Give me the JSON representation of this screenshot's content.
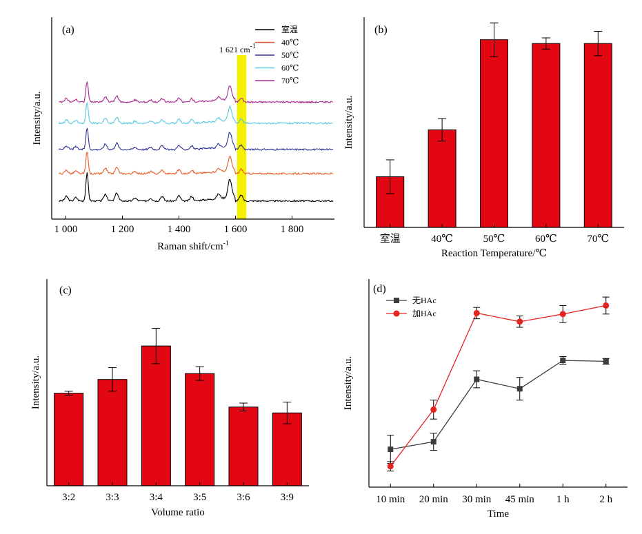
{
  "colors": {
    "bar_red": "#e30613",
    "highlight_yellow": "#f5ef00",
    "black": "#000000",
    "orange": "#ea5a26",
    "navy": "#2d3192",
    "cyan": "#5bc8e0",
    "magenta": "#a8288c",
    "gray_series": "#3c3c3c",
    "red_series": "#e52421"
  },
  "chart_data": [
    {
      "panel": "(a)",
      "type": "line",
      "xlabel": "Raman shift/cm",
      "xlabel_sup": "-1",
      "ylabel": "Intensity/a.u.",
      "xlim": [
        950,
        1950
      ],
      "x_ticks": [
        1000,
        1200,
        1400,
        1600,
        1800
      ],
      "x_tick_labels": [
        "1 000",
        "1 200",
        "1 400",
        "1 600",
        "1 800"
      ],
      "ylim": [
        0,
        1
      ],
      "grid": false,
      "legend_position": "top-right",
      "annotation": {
        "text": "1 621 cm",
        "sup": "-1",
        "band_x": [
          1605,
          1638
        ]
      },
      "series_peaks": [
        [
          1002,
          0.02
        ],
        [
          1035,
          0.015
        ],
        [
          1075,
          0.12
        ],
        [
          1140,
          0.03
        ],
        [
          1180,
          0.035
        ],
        [
          1245,
          0.012
        ],
        [
          1300,
          0.012
        ],
        [
          1340,
          0.02
        ],
        [
          1400,
          0.022
        ],
        [
          1445,
          0.02
        ],
        [
          1540,
          0.02
        ],
        [
          1580,
          0.08
        ],
        [
          1620,
          0.025
        ]
      ],
      "series": [
        {
          "name": "室温",
          "offset": 0.09,
          "scale": 1.15,
          "color": "#000000"
        },
        {
          "name": "40℃",
          "offset": 0.225,
          "scale": 0.9,
          "color": "#ea5a26"
        },
        {
          "name": "50℃",
          "offset": 0.345,
          "scale": 0.9,
          "color": "#2d3192"
        },
        {
          "name": "60℃",
          "offset": 0.475,
          "scale": 0.85,
          "color": "#5bc8e0"
        },
        {
          "name": "70℃",
          "offset": 0.58,
          "scale": 0.85,
          "color": "#a8288c"
        }
      ]
    },
    {
      "panel": "(b)",
      "type": "bar",
      "xlabel": "Reaction Temperature/℃",
      "ylabel": "Intensity/a.u.",
      "categories": [
        "室温",
        "40℃",
        "50℃",
        "60℃",
        "70℃"
      ],
      "values": [
        0.27,
        0.52,
        1.0,
        0.98,
        0.98
      ],
      "errors": [
        0.09,
        0.06,
        0.09,
        0.03,
        0.065
      ],
      "ylim": [
        0,
        1.12
      ],
      "grid": false
    },
    {
      "panel": "(c)",
      "type": "bar",
      "xlabel": "Volume ratio",
      "ylabel": "Intensity/a.u.",
      "categories": [
        "3:2",
        "3:3",
        "3:4",
        "3:5",
        "3:6",
        "3:9"
      ],
      "values": [
        0.47,
        0.54,
        0.71,
        0.57,
        0.4,
        0.37
      ],
      "errors": [
        0.01,
        0.06,
        0.09,
        0.035,
        0.02,
        0.055
      ],
      "ylim": [
        0,
        1.05
      ],
      "grid": false
    },
    {
      "panel": "(d)",
      "type": "line",
      "xlabel": "Time",
      "ylabel": "Intensity/a.u.",
      "categories": [
        "10 min",
        "20 min",
        "30 min",
        "45 min",
        "1 h",
        "2 h"
      ],
      "ylim": [
        0,
        1.1
      ],
      "grid": false,
      "legend_position": "top-left",
      "series": [
        {
          "name": "无HAc",
          "marker": "square",
          "color": "#3c3c3c",
          "values": [
            0.2,
            0.24,
            0.57,
            0.52,
            0.67,
            0.665
          ],
          "errors": [
            0.075,
            0.045,
            0.045,
            0.06,
            0.02,
            0.015
          ]
        },
        {
          "name": "加HAc",
          "marker": "circle",
          "color": "#e52421",
          "values": [
            0.11,
            0.41,
            0.92,
            0.875,
            0.915,
            0.96
          ],
          "errors": [
            0.025,
            0.05,
            0.03,
            0.03,
            0.045,
            0.045
          ]
        }
      ]
    }
  ]
}
